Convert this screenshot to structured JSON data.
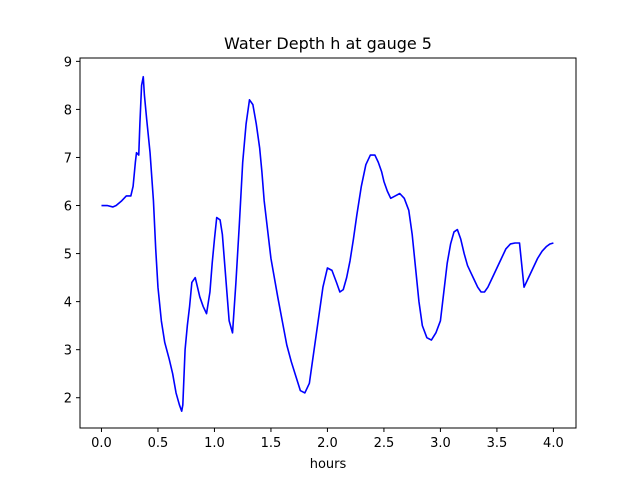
{
  "chart_data": {
    "type": "line",
    "title": "Water Depth h at gauge 5",
    "xlabel": "hours",
    "ylabel": "",
    "xlim": [
      -0.19,
      4.2
    ],
    "ylim": [
      1.37,
      9.07
    ],
    "xticks": [
      0.0,
      0.5,
      1.0,
      1.5,
      2.0,
      2.5,
      3.0,
      3.5,
      4.0
    ],
    "xtick_labels": [
      "0.0",
      "0.5",
      "1.0",
      "1.5",
      "2.0",
      "2.5",
      "3.0",
      "3.5",
      "4.0"
    ],
    "yticks": [
      2,
      3,
      4,
      5,
      6,
      7,
      8,
      9
    ],
    "ytick_labels": [
      "2",
      "3",
      "4",
      "5",
      "6",
      "7",
      "8",
      "9"
    ],
    "grid": false,
    "series": [
      {
        "color": "#0000ff",
        "x": [
          0.0,
          0.05,
          0.1,
          0.13,
          0.18,
          0.22,
          0.26,
          0.28,
          0.3,
          0.31,
          0.33,
          0.34,
          0.355,
          0.37,
          0.38,
          0.4,
          0.43,
          0.46,
          0.48,
          0.5,
          0.53,
          0.56,
          0.6,
          0.63,
          0.66,
          0.69,
          0.71,
          0.72,
          0.74,
          0.76,
          0.78,
          0.8,
          0.83,
          0.85,
          0.87,
          0.9,
          0.93,
          0.96,
          0.98,
          1.0,
          1.02,
          1.05,
          1.07,
          1.09,
          1.11,
          1.13,
          1.16,
          1.19,
          1.22,
          1.25,
          1.28,
          1.31,
          1.34,
          1.37,
          1.4,
          1.42,
          1.44,
          1.47,
          1.5,
          1.53,
          1.56,
          1.6,
          1.64,
          1.68,
          1.72,
          1.76,
          1.8,
          1.84,
          1.87,
          1.9,
          1.93,
          1.96,
          2.0,
          2.04,
          2.08,
          2.11,
          2.14,
          2.17,
          2.2,
          2.23,
          2.26,
          2.3,
          2.34,
          2.38,
          2.42,
          2.45,
          2.48,
          2.5,
          2.53,
          2.56,
          2.6,
          2.64,
          2.68,
          2.72,
          2.75,
          2.78,
          2.81,
          2.84,
          2.88,
          2.92,
          2.96,
          3.0,
          3.03,
          3.06,
          3.09,
          3.12,
          3.15,
          3.18,
          3.21,
          3.24,
          3.27,
          3.3,
          3.33,
          3.36,
          3.39,
          3.42,
          3.46,
          3.5,
          3.54,
          3.58,
          3.62,
          3.66,
          3.7,
          3.74,
          3.78,
          3.82,
          3.86,
          3.9,
          3.94,
          3.97,
          4.0
        ],
        "y": [
          6.0,
          6.0,
          5.97,
          6.0,
          6.1,
          6.2,
          6.2,
          6.4,
          6.9,
          7.1,
          7.05,
          7.7,
          8.5,
          8.68,
          8.3,
          7.8,
          7.1,
          6.1,
          5.1,
          4.3,
          3.6,
          3.15,
          2.8,
          2.5,
          2.1,
          1.85,
          1.72,
          1.85,
          3.0,
          3.5,
          3.9,
          4.4,
          4.5,
          4.3,
          4.1,
          3.9,
          3.75,
          4.2,
          4.8,
          5.3,
          5.75,
          5.7,
          5.4,
          4.8,
          4.2,
          3.6,
          3.35,
          4.4,
          5.6,
          6.9,
          7.7,
          8.2,
          8.1,
          7.7,
          7.2,
          6.7,
          6.1,
          5.5,
          4.9,
          4.5,
          4.1,
          3.6,
          3.1,
          2.75,
          2.45,
          2.15,
          2.1,
          2.3,
          2.8,
          3.3,
          3.8,
          4.3,
          4.7,
          4.65,
          4.4,
          4.2,
          4.25,
          4.5,
          4.85,
          5.3,
          5.8,
          6.4,
          6.85,
          7.05,
          7.05,
          6.9,
          6.7,
          6.5,
          6.3,
          6.15,
          6.2,
          6.25,
          6.15,
          5.9,
          5.4,
          4.7,
          4.0,
          3.5,
          3.25,
          3.2,
          3.35,
          3.6,
          4.2,
          4.8,
          5.2,
          5.45,
          5.5,
          5.3,
          5.0,
          4.75,
          4.6,
          4.45,
          4.3,
          4.2,
          4.2,
          4.3,
          4.5,
          4.7,
          4.9,
          5.1,
          5.2,
          5.22,
          5.22,
          4.3,
          4.5,
          4.7,
          4.9,
          5.05,
          5.15,
          5.2,
          5.22
        ]
      }
    ]
  }
}
